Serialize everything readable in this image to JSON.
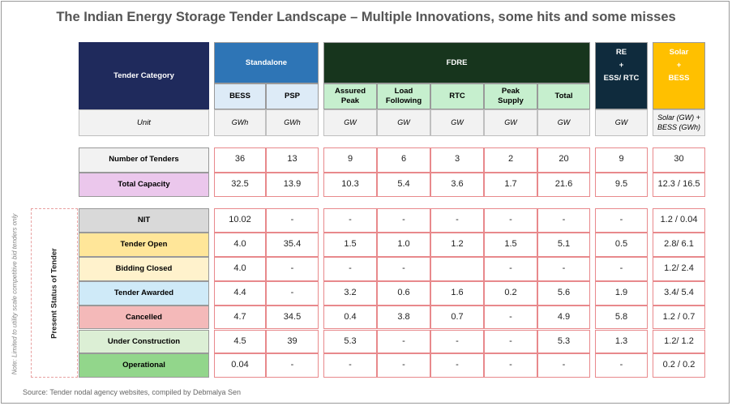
{
  "title": "The Indian Energy Storage Tender Landscape – Multiple Innovations, some hits and some misses",
  "header": {
    "category": "Tender Category",
    "unit_label": "Unit",
    "groups": [
      {
        "label": [
          "Standalone"
        ],
        "columns": [
          {
            "name": "BESS",
            "unit": "GWh"
          },
          {
            "name": "PSP",
            "unit": "GWh"
          }
        ]
      },
      {
        "label": [
          "FDRE"
        ],
        "columns": [
          {
            "name": "Assured Peak",
            "unit": "GW"
          },
          {
            "name": "Load Following",
            "unit": "GW"
          },
          {
            "name": "RTC",
            "unit": "GW"
          },
          {
            "name": "Peak Supply",
            "unit": "GW"
          },
          {
            "name": "Total",
            "unit": "GW"
          }
        ]
      },
      {
        "label": [
          "RE",
          "+",
          "ESS/ RTC"
        ],
        "columns": [
          {
            "unit": "GW"
          }
        ]
      },
      {
        "label": [
          "Solar",
          "+",
          "BESS"
        ],
        "columns": [
          {
            "unit": "Solar (GW) + BESS (GWh)"
          }
        ]
      }
    ]
  },
  "summary": {
    "rows": [
      {
        "label": "Number of Tenders",
        "values": [
          "36",
          "13",
          "9",
          "6",
          "3",
          "2",
          "20",
          "9",
          "30"
        ]
      },
      {
        "label": "Total Capacity",
        "values": [
          "32.5",
          "13.9",
          "10.3",
          "5.4",
          "3.6",
          "1.7",
          "21.6",
          "9.5",
          "12.3 / 16.5"
        ]
      }
    ]
  },
  "status": {
    "label": "Present Status of Tender",
    "rows": [
      {
        "label": "NIT",
        "values": [
          "10.02",
          "-",
          "-",
          "-",
          "-",
          "-",
          "-",
          "-",
          "1.2 / 0.04"
        ]
      },
      {
        "label": "Tender Open",
        "values": [
          "4.0",
          "35.4",
          "1.5",
          "1.0",
          "1.2",
          "1.5",
          "5.1",
          "0.5",
          "2.8/ 6.1"
        ]
      },
      {
        "label": "Bidding Closed",
        "values": [
          "4.0",
          "-",
          "-",
          "-",
          null,
          "-",
          "-",
          "-",
          "1.2/ 2.4"
        ]
      },
      {
        "label": "Tender Awarded",
        "values": [
          "4.4",
          "-",
          "3.2",
          "0.6",
          "1.6",
          "0.2",
          "5.6",
          "1.9",
          "3.4/ 5.4"
        ]
      },
      {
        "label": "Cancelled",
        "values": [
          "4.7",
          "34.5",
          "0.4",
          "3.8",
          "0.7",
          "-",
          "4.9",
          "5.8",
          "1.2 / 0.7"
        ]
      },
      {
        "label": "Under Construction",
        "values": [
          "4.5",
          "39",
          "5.3",
          "-",
          "-",
          "-",
          "5.3",
          "1.3",
          "1.2/ 1.2"
        ]
      },
      {
        "label": "Operational",
        "values": [
          "0.04",
          "-",
          "-",
          "-",
          "-",
          "-",
          "-",
          "-",
          "0.2 / 0.2"
        ]
      }
    ]
  },
  "note": "Note: Limited to utility scale competitive bid tenders only",
  "source": "Source: Tender nodal agency websites, compiled by Debmalya Sen"
}
